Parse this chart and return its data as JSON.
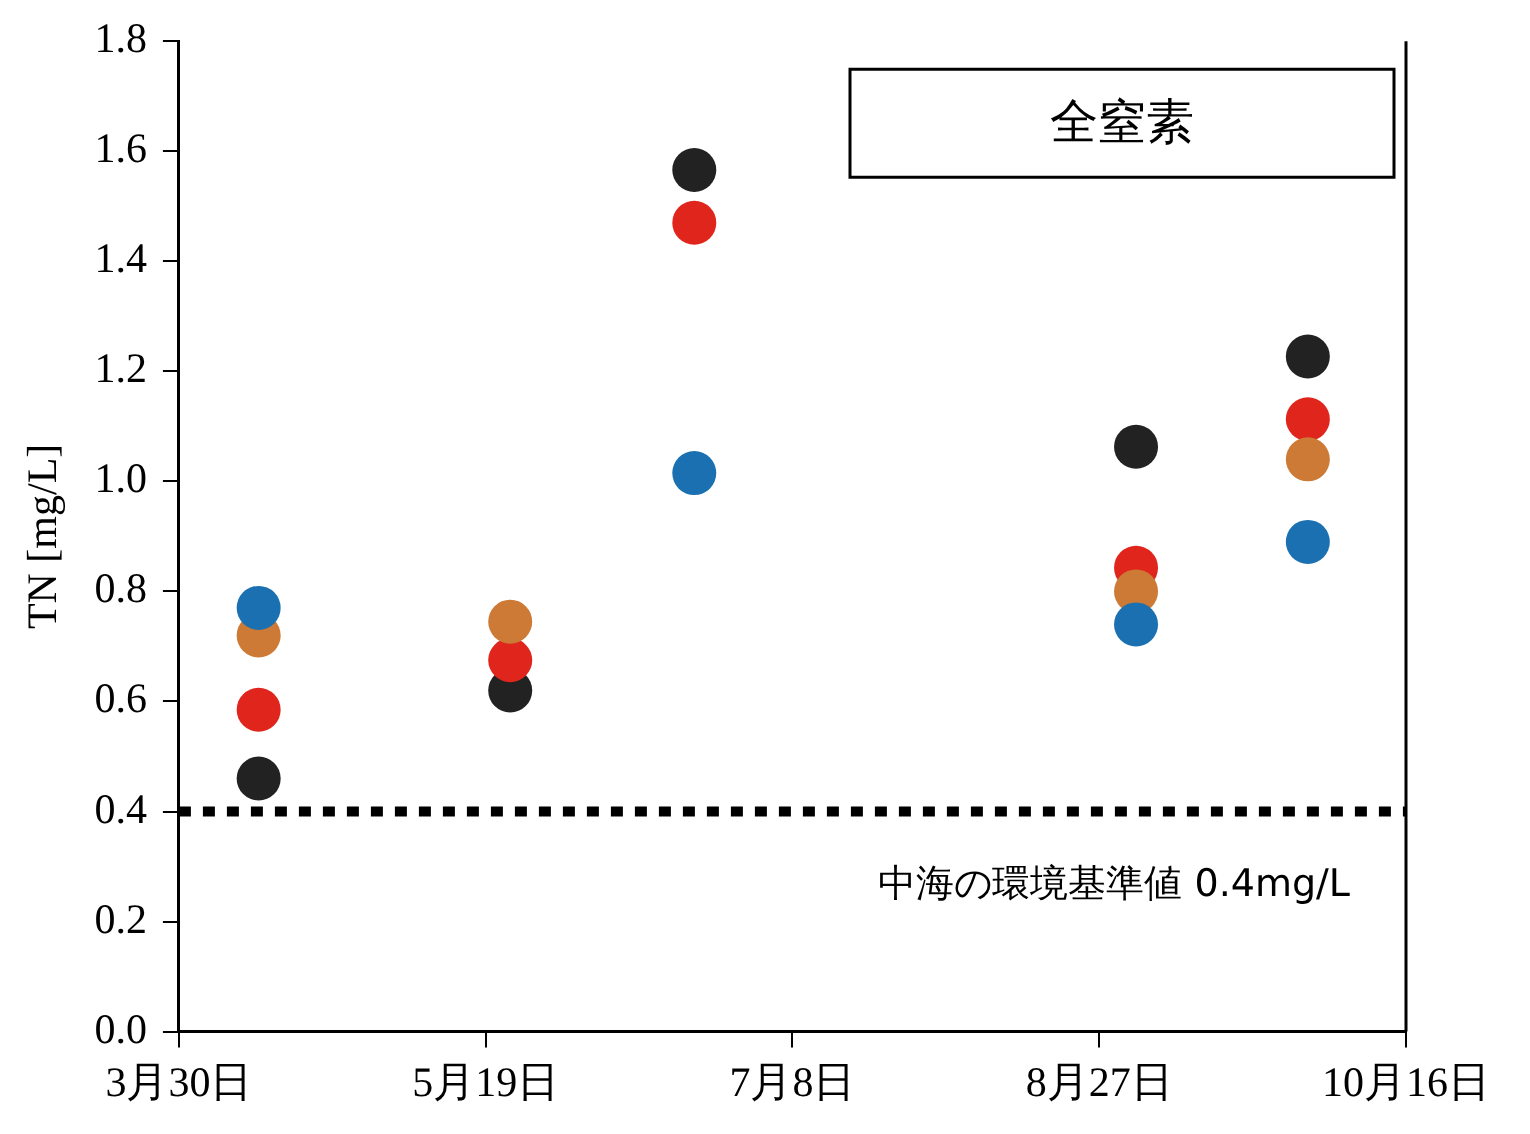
{
  "chart_data": {
    "type": "scatter",
    "title": "全窒素",
    "ylabel": "TN [mg/L]",
    "x": [
      "--04-12",
      "--05-23",
      "--06-22",
      "--09-02",
      "--09-30"
    ],
    "series": [
      {
        "color": "#1a70b0",
        "values": [
          0.77,
          null,
          1.015,
          0.74,
          0.89
        ]
      },
      {
        "color": "#cc7a35",
        "values": [
          0.72,
          0.745,
          null,
          0.8,
          1.04
        ]
      },
      {
        "color": "#e0261c",
        "values": [
          0.585,
          0.675,
          1.47,
          0.843,
          1.113
        ]
      },
      {
        "color": "#222222",
        "values": [
          0.46,
          0.62,
          1.566,
          1.063,
          1.227
        ]
      }
    ],
    "xlim": [
      "--03-30",
      "--10-16"
    ],
    "xticks": [
      {
        "value": "--03-30",
        "label": "3月30日"
      },
      {
        "value": "--05-19",
        "label": "5月19日"
      },
      {
        "value": "--07-08",
        "label": "7月8日"
      },
      {
        "value": "--08-27",
        "label": "8月27日"
      },
      {
        "value": "--10-16",
        "label": "10月16日"
      }
    ],
    "ylim": [
      0,
      1.8
    ],
    "yticks": [
      {
        "value": 0,
        "label": "0.0"
      },
      {
        "value": 0.2,
        "label": "0.2"
      },
      {
        "value": 0.4,
        "label": "0.4"
      },
      {
        "value": 0.6,
        "label": "0.6"
      },
      {
        "value": 0.8,
        "label": "0.8"
      },
      {
        "value": 1,
        "label": "1.0"
      },
      {
        "value": 1.2,
        "label": "1.2"
      },
      {
        "value": 1.4,
        "label": "1.4"
      },
      {
        "value": 1.6,
        "label": "1.6"
      },
      {
        "value": 1.8,
        "label": "1.8"
      }
    ],
    "ref_lines": [
      {
        "axis": "y",
        "value": 0.4,
        "label": "中海の環境基準値 0.4mg/L",
        "color": "#000000",
        "line_style": "dotted"
      }
    ],
    "grid": false,
    "legend": false,
    "marker": "circle"
  }
}
